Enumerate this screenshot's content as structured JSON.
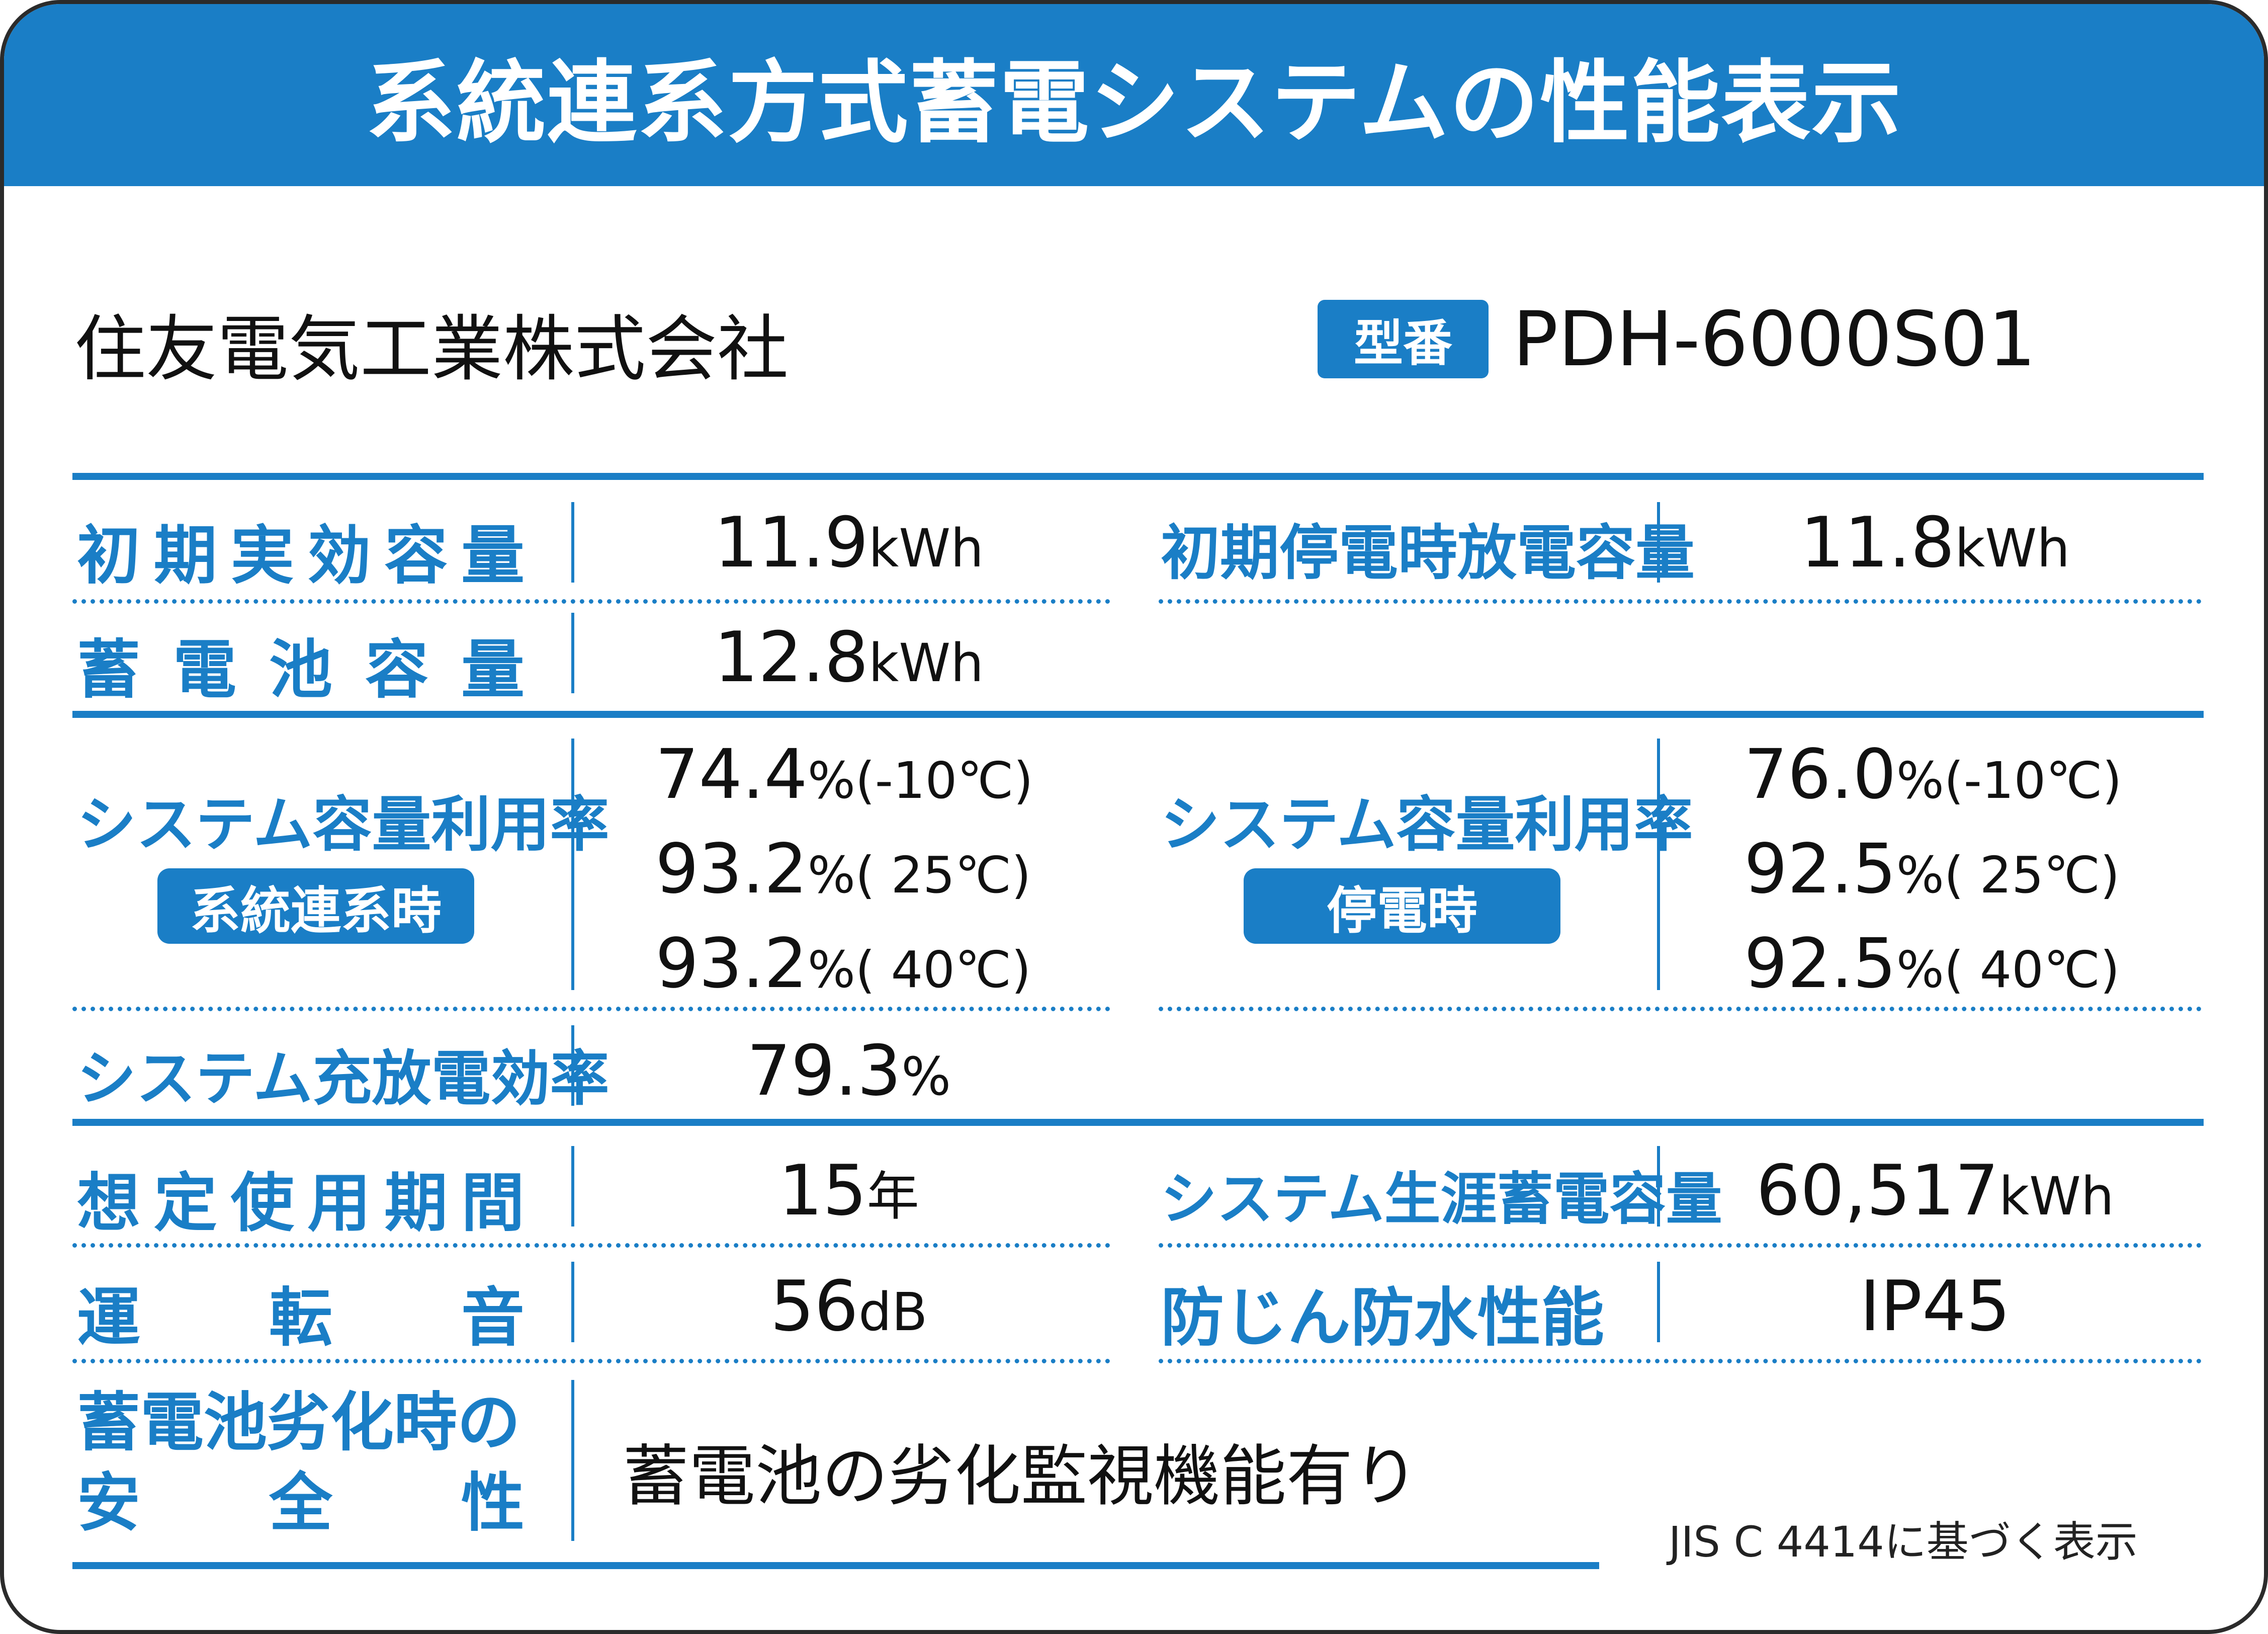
{
  "header": {
    "title": "系統連系方式蓄電システムの性能表示"
  },
  "maker": {
    "company": "住友電気工業株式会社",
    "model_label": "型番",
    "model_number": "PDH-6000S01"
  },
  "specs": {
    "initial_capacity": {
      "label": [
        "初",
        "期",
        "実",
        "効",
        "容",
        "量"
      ],
      "value": "11.9",
      "unit": "kWh"
    },
    "outage_capacity": {
      "label": "初期停電時放電容量",
      "value": "11.8",
      "unit": "kWh"
    },
    "battery_capacity": {
      "label": [
        "蓄",
        "電",
        "池",
        "容",
        "量"
      ],
      "value": "12.8",
      "unit": "kWh"
    },
    "grid_utilization": {
      "label": "システム容量利用率",
      "badge": "系統連系時",
      "rows": [
        {
          "value": "74.4",
          "unit": "%",
          "temp": "(-10℃)"
        },
        {
          "value": "93.2",
          "unit": "%",
          "temp": "( 25℃)"
        },
        {
          "value": "93.2",
          "unit": "%",
          "temp": "( 40℃)"
        }
      ]
    },
    "outage_utilization": {
      "label": "システム容量利用率",
      "badge": "停電時",
      "rows": [
        {
          "value": "76.0",
          "unit": "%",
          "temp": "(-10℃)"
        },
        {
          "value": "92.5",
          "unit": "%",
          "temp": "( 25℃)"
        },
        {
          "value": "92.5",
          "unit": "%",
          "temp": "( 40℃)"
        }
      ]
    },
    "efficiency": {
      "label": "システム充放電効率",
      "value": "79.3",
      "unit": "%"
    },
    "lifetime": {
      "label": [
        "想",
        "定",
        "使",
        "用",
        "期",
        "間"
      ],
      "value": "15",
      "unit": "年"
    },
    "lifetime_capacity": {
      "label": "システム生涯蓄電容量",
      "value": "60,517",
      "unit": "kWh"
    },
    "noise": {
      "label": [
        "運",
        "転",
        "音"
      ],
      "value": "56",
      "unit": "dB"
    },
    "ingress": {
      "label": "防じん防水性能",
      "value": "IP45"
    },
    "safety": {
      "label_line1": "蓄電池劣化時の",
      "label_line2": [
        "安",
        "全",
        "性"
      ],
      "value": "蓄電池の劣化監視機能有り"
    }
  },
  "footer": {
    "note": "JIS C 4414に基づく表示"
  }
}
